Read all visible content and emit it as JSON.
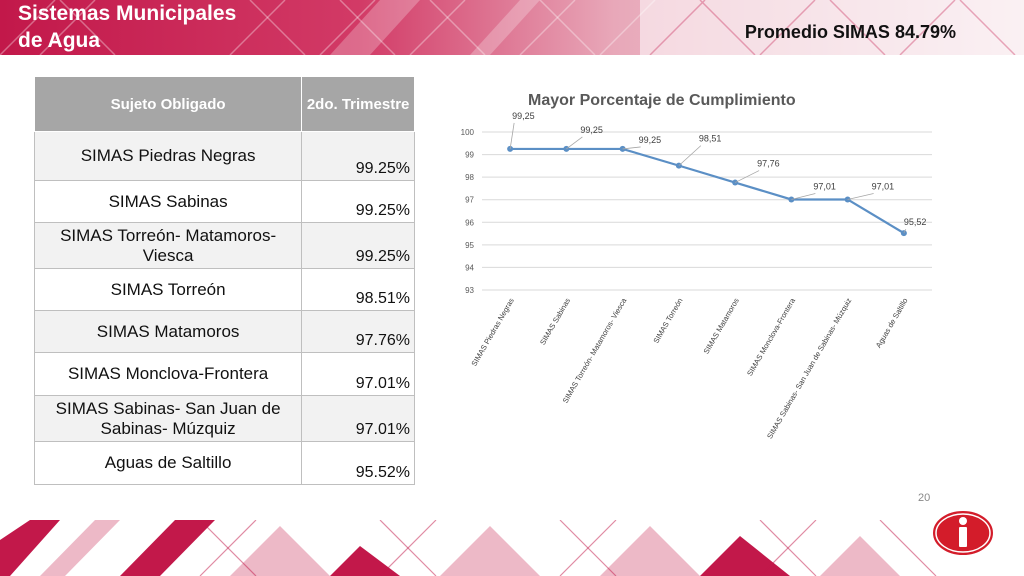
{
  "header": {
    "title_line1": "Sistemas Municipales",
    "title_line2": "de Agua",
    "average_label": "Promedio  SIMAS 84.79%"
  },
  "colors": {
    "accent": "#c2184a",
    "table_header": "#a6a6a6",
    "line": "#5b8fc5"
  },
  "table": {
    "header_col1": "Sujeto Obligado",
    "header_col2": "2do. Trimestre",
    "rows": [
      {
        "name": "SIMAS Piedras Negras",
        "value": "99.25%"
      },
      {
        "name": "SIMAS Sabinas",
        "value": "99.25%"
      },
      {
        "name": "SIMAS Torreón- Matamoros- Viesca",
        "value": "99.25%"
      },
      {
        "name": "SIMAS Torreón",
        "value": "98.51%"
      },
      {
        "name": "SIMAS Matamoros",
        "value": "97.76%"
      },
      {
        "name": "SIMAS Monclova-Frontera",
        "value": "97.01%"
      },
      {
        "name": "SIMAS Sabinas- San Juan de Sabinas- Múzquiz",
        "value": "97.01%"
      },
      {
        "name": "Aguas de Saltillo",
        "value": "95.52%"
      }
    ]
  },
  "chart_data": {
    "type": "line",
    "title": "Mayor Porcentaje de Cumplimiento",
    "categories": [
      "SIMAS Piedras Negras",
      "SIMAS Sabinas",
      "SIMAS Torreón- Matamoros- Viesca",
      "SIMAS Torreón",
      "SIMAS Matamoros",
      "SIMAS Monclova-Frontera",
      "SIMAS Sabinas- San Juan de Sabinas- Múzquiz",
      "Aguas de Saltillo"
    ],
    "values": [
      99.25,
      99.25,
      99.25,
      98.51,
      97.76,
      97.01,
      97.01,
      95.52
    ],
    "data_labels": [
      "99,25",
      "99,25",
      "99,25",
      "98,51",
      "97,76",
      "97,01",
      "97,01",
      "95,52"
    ],
    "ylim": [
      93,
      100
    ],
    "yticks": [
      93,
      94,
      95,
      96,
      97,
      98,
      99,
      100
    ],
    "grid": true,
    "legend": "none",
    "xlabel": "",
    "ylabel": ""
  },
  "footer": {
    "page_number": "20",
    "logo_icon": "info-logo-icon"
  }
}
